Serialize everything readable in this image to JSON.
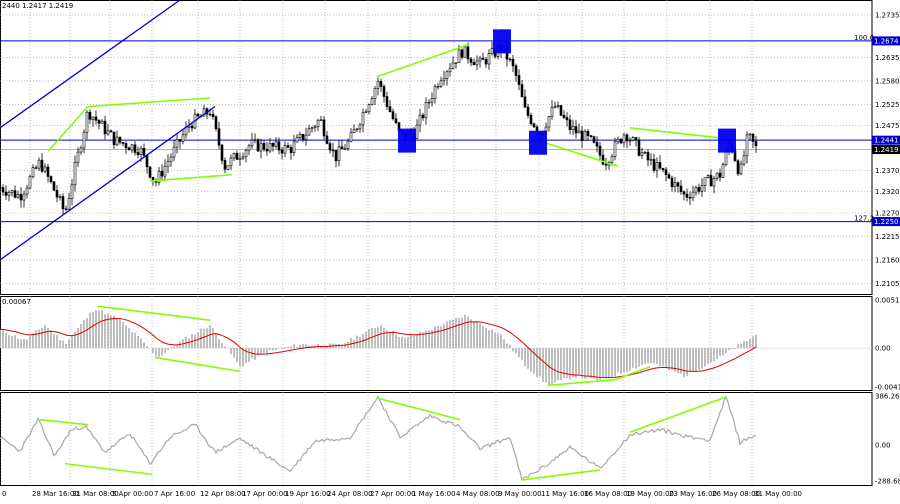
{
  "header": {
    "ohlc_text": "2440 1.2417 1.2419"
  },
  "chart_data": [
    {
      "type": "candlestick",
      "panel": "price",
      "ylim": [
        1.208,
        1.277
      ],
      "y_ticks": [
        "1.2735",
        "1.2674",
        "1.2635",
        "1.2580",
        "1.2525",
        "1.2475",
        "1.2441",
        "1.2419",
        "1.2370",
        "1.2320",
        "1.2270",
        "1.2250",
        "1.2215",
        "1.2160",
        "1.2105"
      ],
      "levels": [
        {
          "value": 1.2674,
          "label": "1.2674",
          "fib_label": "100.0",
          "color": "#0000cc"
        },
        {
          "value": 1.2441,
          "label": "1.2441",
          "fib_label": "",
          "color": "#0000cc"
        },
        {
          "value": 1.225,
          "label": "1.2250",
          "fib_label": "127.2",
          "color": "#0000cc"
        }
      ],
      "current_price": {
        "value": 1.2419,
        "label": "1.2419"
      },
      "anchors": [
        {
          "t": 0,
          "v": 1.233
        },
        {
          "t": 20,
          "v": 1.231
        },
        {
          "t": 40,
          "v": 1.239
        },
        {
          "t": 55,
          "v": 1.232
        },
        {
          "t": 65,
          "v": 1.227
        },
        {
          "t": 88,
          "v": 1.251
        },
        {
          "t": 115,
          "v": 1.244
        },
        {
          "t": 140,
          "v": 1.242
        },
        {
          "t": 155,
          "v": 1.234
        },
        {
          "t": 190,
          "v": 1.248
        },
        {
          "t": 210,
          "v": 1.251
        },
        {
          "t": 225,
          "v": 1.238
        },
        {
          "t": 250,
          "v": 1.243
        },
        {
          "t": 290,
          "v": 1.242
        },
        {
          "t": 320,
          "v": 1.249
        },
        {
          "t": 335,
          "v": 1.24
        },
        {
          "t": 350,
          "v": 1.244
        },
        {
          "t": 378,
          "v": 1.258
        },
        {
          "t": 400,
          "v": 1.245
        },
        {
          "t": 415,
          "v": 1.246
        },
        {
          "t": 440,
          "v": 1.259
        },
        {
          "t": 462,
          "v": 1.265
        },
        {
          "t": 480,
          "v": 1.262
        },
        {
          "t": 502,
          "v": 1.266
        },
        {
          "t": 515,
          "v": 1.26
        },
        {
          "t": 525,
          "v": 1.251
        },
        {
          "t": 540,
          "v": 1.246
        },
        {
          "t": 555,
          "v": 1.252
        },
        {
          "t": 570,
          "v": 1.247
        },
        {
          "t": 590,
          "v": 1.244
        },
        {
          "t": 605,
          "v": 1.239
        },
        {
          "t": 625,
          "v": 1.246
        },
        {
          "t": 645,
          "v": 1.24
        },
        {
          "t": 665,
          "v": 1.236
        },
        {
          "t": 685,
          "v": 1.231
        },
        {
          "t": 705,
          "v": 1.234
        },
        {
          "t": 720,
          "v": 1.236
        },
        {
          "t": 730,
          "v": 1.244
        },
        {
          "t": 740,
          "v": 1.236
        },
        {
          "t": 748,
          "v": 1.245
        },
        {
          "t": 757,
          "v": 1.2419
        }
      ],
      "trend_lines": [
        {
          "type": "channel",
          "color": "#0000cc",
          "points": [
            [
              0,
              1.247
            ],
            [
              180,
              1.277
            ]
          ]
        },
        {
          "type": "channel",
          "color": "#0000cc",
          "points": [
            [
              0,
              1.216
            ],
            [
              215,
              1.252
            ]
          ]
        }
      ],
      "divergence_lines": [
        {
          "color": "#80ff00",
          "points": [
            [
              48,
              1.2415
            ],
            [
              88,
              1.252
            ]
          ]
        },
        {
          "color": "#80ff00",
          "points": [
            [
              88,
              1.252
            ],
            [
              210,
              1.254
            ]
          ]
        },
        {
          "color": "#80ff00",
          "points": [
            [
              150,
              1.2345
            ],
            [
              232,
              1.236
            ]
          ]
        },
        {
          "color": "#80ff00",
          "points": [
            [
              377,
              1.259
            ],
            [
              468,
              1.2665
            ]
          ]
        },
        {
          "color": "#80ff00",
          "points": [
            [
              538,
              1.244
            ],
            [
              618,
              1.238
            ]
          ]
        },
        {
          "color": "#80ff00",
          "points": [
            [
              630,
              1.247
            ],
            [
              725,
              1.2445
            ]
          ]
        }
      ],
      "markers": [
        {
          "t": 407,
          "v": 1.244,
          "color": "#0000ee"
        },
        {
          "t": 502,
          "v": 1.2673,
          "color": "#0000ee"
        },
        {
          "t": 538,
          "v": 1.2435,
          "color": "#0000ee"
        },
        {
          "t": 727,
          "v": 1.244,
          "color": "#0000ee"
        }
      ]
    },
    {
      "type": "histogram",
      "panel": "macd",
      "label": "0.00067",
      "ylim": [
        -0.0045,
        0.0056
      ],
      "y_ticks": [
        "0.00517",
        "0.00",
        "-0.00419"
      ],
      "anchors": [
        {
          "t": 0,
          "v": 0.002
        },
        {
          "t": 25,
          "v": 0.0008
        },
        {
          "t": 45,
          "v": 0.0025
        },
        {
          "t": 65,
          "v": 0.0005
        },
        {
          "t": 95,
          "v": 0.0043
        },
        {
          "t": 120,
          "v": 0.003
        },
        {
          "t": 140,
          "v": 0.001
        },
        {
          "t": 158,
          "v": -0.001
        },
        {
          "t": 185,
          "v": 0.001
        },
        {
          "t": 210,
          "v": 0.0025
        },
        {
          "t": 240,
          "v": -0.002
        },
        {
          "t": 265,
          "v": -0.0005
        },
        {
          "t": 300,
          "v": 0.0004
        },
        {
          "t": 340,
          "v": 0.0003
        },
        {
          "t": 380,
          "v": 0.0025
        },
        {
          "t": 405,
          "v": 0.001
        },
        {
          "t": 430,
          "v": 0.002
        },
        {
          "t": 465,
          "v": 0.0035
        },
        {
          "t": 500,
          "v": 0.0015
        },
        {
          "t": 525,
          "v": -0.0018
        },
        {
          "t": 548,
          "v": -0.004
        },
        {
          "t": 575,
          "v": -0.003
        },
        {
          "t": 600,
          "v": -0.0035
        },
        {
          "t": 625,
          "v": -0.0025
        },
        {
          "t": 650,
          "v": -0.0015
        },
        {
          "t": 685,
          "v": -0.003
        },
        {
          "t": 720,
          "v": -0.001
        },
        {
          "t": 757,
          "v": 0.0015
        }
      ],
      "divergence_lines": [
        {
          "color": "#80ff00",
          "points": [
            [
              98,
              0.0045
            ],
            [
              210,
              0.003
            ]
          ]
        },
        {
          "color": "#80ff00",
          "points": [
            [
              155,
              -0.001
            ],
            [
              240,
              -0.0025
            ]
          ]
        },
        {
          "color": "#80ff00",
          "points": [
            [
              548,
              -0.004
            ],
            [
              615,
              -0.0034
            ]
          ]
        },
        {
          "color": "#80ff00",
          "points": [
            [
              615,
              -0.0034
            ],
            [
              650,
              -0.002
            ]
          ]
        }
      ]
    },
    {
      "type": "line",
      "panel": "oscillator",
      "ylim": [
        -320,
        420
      ],
      "y_ticks": [
        "386.2645",
        "0.00",
        "-288.682"
      ],
      "anchors": [
        {
          "t": 0,
          "v": 60
        },
        {
          "t": 20,
          "v": -50
        },
        {
          "t": 38,
          "v": 200
        },
        {
          "t": 55,
          "v": -90
        },
        {
          "t": 70,
          "v": 110
        },
        {
          "t": 85,
          "v": 150
        },
        {
          "t": 105,
          "v": -60
        },
        {
          "t": 130,
          "v": 90
        },
        {
          "t": 150,
          "v": -150
        },
        {
          "t": 170,
          "v": 60
        },
        {
          "t": 195,
          "v": 160
        },
        {
          "t": 215,
          "v": -60
        },
        {
          "t": 240,
          "v": 50
        },
        {
          "t": 265,
          "v": -80
        },
        {
          "t": 290,
          "v": -210
        },
        {
          "t": 315,
          "v": 30
        },
        {
          "t": 350,
          "v": 60
        },
        {
          "t": 378,
          "v": 380
        },
        {
          "t": 400,
          "v": 60
        },
        {
          "t": 430,
          "v": 230
        },
        {
          "t": 458,
          "v": 150
        },
        {
          "t": 480,
          "v": -30
        },
        {
          "t": 510,
          "v": 60
        },
        {
          "t": 522,
          "v": -280
        },
        {
          "t": 545,
          "v": -170
        },
        {
          "t": 570,
          "v": -20
        },
        {
          "t": 600,
          "v": -190
        },
        {
          "t": 630,
          "v": 80
        },
        {
          "t": 660,
          "v": 120
        },
        {
          "t": 690,
          "v": 60
        },
        {
          "t": 710,
          "v": 40
        },
        {
          "t": 726,
          "v": 380
        },
        {
          "t": 740,
          "v": 20
        },
        {
          "t": 757,
          "v": 80
        }
      ],
      "divergence_lines": [
        {
          "color": "#80ff00",
          "points": [
            [
              40,
              200
            ],
            [
              88,
              160
            ]
          ]
        },
        {
          "color": "#80ff00",
          "points": [
            [
              65,
              -150
            ],
            [
              152,
              -235
            ]
          ]
        },
        {
          "color": "#80ff00",
          "points": [
            [
              378,
              370
            ],
            [
              460,
              200
            ]
          ]
        },
        {
          "color": "#80ff00",
          "points": [
            [
              522,
              -280
            ],
            [
              600,
              -200
            ]
          ]
        },
        {
          "color": "#80ff00",
          "points": [
            [
              630,
              100
            ],
            [
              726,
              380
            ]
          ]
        }
      ]
    }
  ],
  "x_labels": [
    {
      "t": 0,
      "label": "0"
    },
    {
      "t": 30,
      "label": "28 Mar 16:00"
    },
    {
      "t": 70,
      "label": "31 Mar 08:00"
    },
    {
      "t": 110,
      "label": "5 Apr 00:00"
    },
    {
      "t": 152,
      "label": "7 Apr 16:00"
    },
    {
      "t": 198,
      "label": "12 Apr 08:00"
    },
    {
      "t": 240,
      "label": "17 Apr 00:00"
    },
    {
      "t": 283,
      "label": "19 Apr 16:00"
    },
    {
      "t": 325,
      "label": "24 Apr 08:00"
    },
    {
      "t": 368,
      "label": "27 Apr 00:00"
    },
    {
      "t": 410,
      "label": "1 May 16:00"
    },
    {
      "t": 454,
      "label": "4 May 08:00"
    },
    {
      "t": 496,
      "label": "9 May 00:00"
    },
    {
      "t": 539,
      "label": "11 May 16:00"
    },
    {
      "t": 582,
      "label": "16 May 08:00"
    },
    {
      "t": 624,
      "label": "19 May 00:00"
    },
    {
      "t": 667,
      "label": "23 May 16:00"
    },
    {
      "t": 710,
      "label": "26 May 08:00"
    },
    {
      "t": 752,
      "label": "31 May 00:00"
    }
  ]
}
